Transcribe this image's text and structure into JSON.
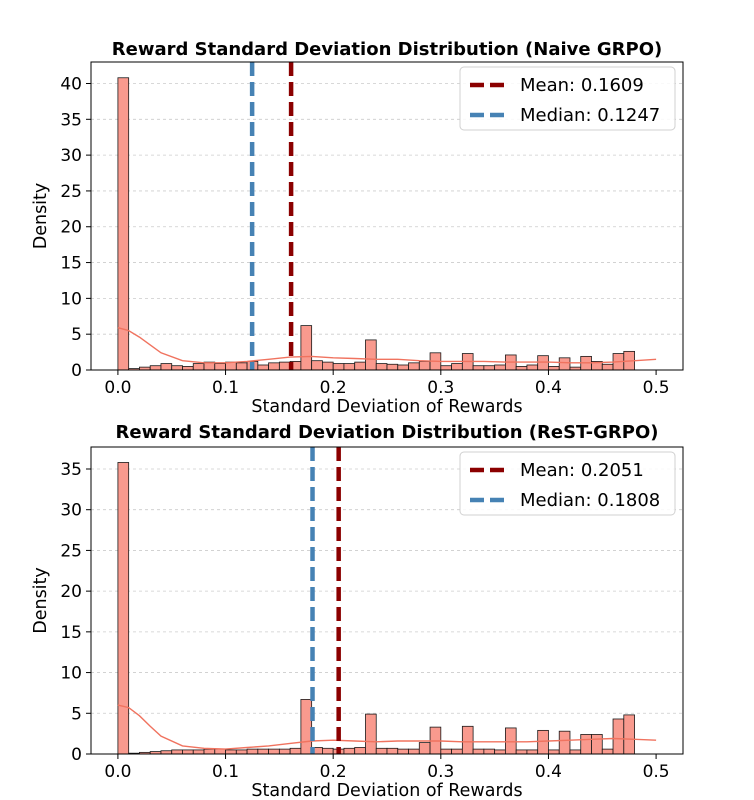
{
  "colors": {
    "bar_fill": "#f99a8e",
    "bar_edge": "#1a1a1a",
    "kde_line": "#f0735f",
    "mean_line": "#8b0000",
    "median_line": "#4682b4",
    "grid": "#cccccc"
  },
  "chart_data": [
    {
      "type": "histogram",
      "title": "Reward Standard Deviation Distribution (Naive GRPO)",
      "xlabel": "Standard Deviation of Rewards",
      "ylabel": "Density",
      "xlim": [
        -0.025,
        0.525
      ],
      "ylim": [
        0,
        43
      ],
      "xticks": [
        0.0,
        0.1,
        0.2,
        0.3,
        0.4,
        0.5
      ],
      "xtick_labels": [
        "0.0",
        "0.1",
        "0.2",
        "0.3",
        "0.4",
        "0.5"
      ],
      "yticks": [
        0,
        5,
        10,
        15,
        20,
        25,
        30,
        35,
        40
      ],
      "ytick_labels": [
        "0",
        "5",
        "10",
        "15",
        "20",
        "25",
        "30",
        "35",
        "40"
      ],
      "grid": "horizontal dashed",
      "legend_position": "top-right",
      "bin_width": 0.01,
      "bin_start": 0.0,
      "densities": [
        40.8,
        0.2,
        0.4,
        0.6,
        0.9,
        0.6,
        0.5,
        0.9,
        1.1,
        0.9,
        1.1,
        1.0,
        1.2,
        0.7,
        1.0,
        1.1,
        1.2,
        6.2,
        1.3,
        1.1,
        0.9,
        0.9,
        1.1,
        4.2,
        0.9,
        0.8,
        0.7,
        1.0,
        1.2,
        2.4,
        0.6,
        0.9,
        2.3,
        0.6,
        0.6,
        0.7,
        2.1,
        0.5,
        0.7,
        2.0,
        0.5,
        1.7,
        0.4,
        1.9,
        1.2,
        0.8,
        2.3,
        2.6
      ],
      "kde": {
        "x": [
          0.0,
          0.01,
          0.02,
          0.03,
          0.04,
          0.06,
          0.08,
          0.1,
          0.12,
          0.14,
          0.16,
          0.18,
          0.2,
          0.22,
          0.24,
          0.26,
          0.28,
          0.3,
          0.32,
          0.34,
          0.36,
          0.38,
          0.4,
          0.42,
          0.44,
          0.46,
          0.48,
          0.5
        ],
        "y": [
          5.9,
          5.5,
          4.6,
          3.5,
          2.4,
          1.3,
          1.0,
          1.0,
          1.2,
          1.5,
          1.8,
          1.9,
          1.7,
          1.6,
          1.5,
          1.5,
          1.3,
          1.2,
          1.2,
          1.2,
          1.1,
          1.1,
          1.1,
          1.0,
          1.0,
          1.1,
          1.3,
          1.5
        ]
      },
      "lines": [
        {
          "label": "Mean: 0.1609",
          "value": 0.1609,
          "color": "#8b0000"
        },
        {
          "label": "Median: 0.1247",
          "value": 0.1247,
          "color": "#4682b4"
        }
      ]
    },
    {
      "type": "histogram",
      "title": "Reward Standard Deviation Distribution (ReST-GRPO)",
      "xlabel": "Standard Deviation of Rewards",
      "ylabel": "Density",
      "xlim": [
        -0.025,
        0.525
      ],
      "ylim": [
        0,
        37.7
      ],
      "xticks": [
        0.0,
        0.1,
        0.2,
        0.3,
        0.4,
        0.5
      ],
      "xtick_labels": [
        "0.0",
        "0.1",
        "0.2",
        "0.3",
        "0.4",
        "0.5"
      ],
      "yticks": [
        0,
        5,
        10,
        15,
        20,
        25,
        30,
        35
      ],
      "ytick_labels": [
        "0",
        "5",
        "10",
        "15",
        "20",
        "25",
        "30",
        "35"
      ],
      "grid": "horizontal dashed",
      "legend_position": "top-right",
      "bin_width": 0.01,
      "bin_start": 0.0,
      "densities": [
        35.8,
        0.1,
        0.2,
        0.3,
        0.4,
        0.5,
        0.5,
        0.5,
        0.6,
        0.6,
        0.5,
        0.5,
        0.6,
        0.6,
        0.6,
        0.6,
        0.7,
        6.7,
        0.8,
        0.7,
        0.6,
        0.7,
        0.8,
        4.9,
        0.7,
        0.7,
        0.6,
        0.6,
        1.4,
        3.3,
        0.6,
        0.6,
        3.4,
        0.6,
        0.6,
        0.5,
        3.2,
        0.5,
        0.5,
        2.9,
        0.5,
        2.8,
        0.5,
        2.4,
        2.4,
        0.6,
        4.3,
        4.8
      ],
      "kde": {
        "x": [
          0.0,
          0.01,
          0.02,
          0.03,
          0.04,
          0.06,
          0.08,
          0.1,
          0.12,
          0.14,
          0.16,
          0.18,
          0.2,
          0.22,
          0.24,
          0.26,
          0.28,
          0.3,
          0.32,
          0.34,
          0.36,
          0.38,
          0.4,
          0.42,
          0.44,
          0.46,
          0.48,
          0.5
        ],
        "y": [
          6.0,
          5.7,
          4.7,
          3.4,
          2.2,
          1.0,
          0.7,
          0.6,
          0.8,
          1.0,
          1.3,
          1.6,
          1.7,
          1.6,
          1.5,
          1.6,
          1.6,
          1.6,
          1.5,
          1.5,
          1.5,
          1.5,
          1.6,
          1.7,
          1.8,
          1.9,
          1.8,
          1.7
        ]
      },
      "lines": [
        {
          "label": "Mean: 0.2051",
          "value": 0.2051,
          "color": "#8b0000"
        },
        {
          "label": "Median: 0.1808",
          "value": 0.1808,
          "color": "#4682b4"
        }
      ]
    }
  ]
}
